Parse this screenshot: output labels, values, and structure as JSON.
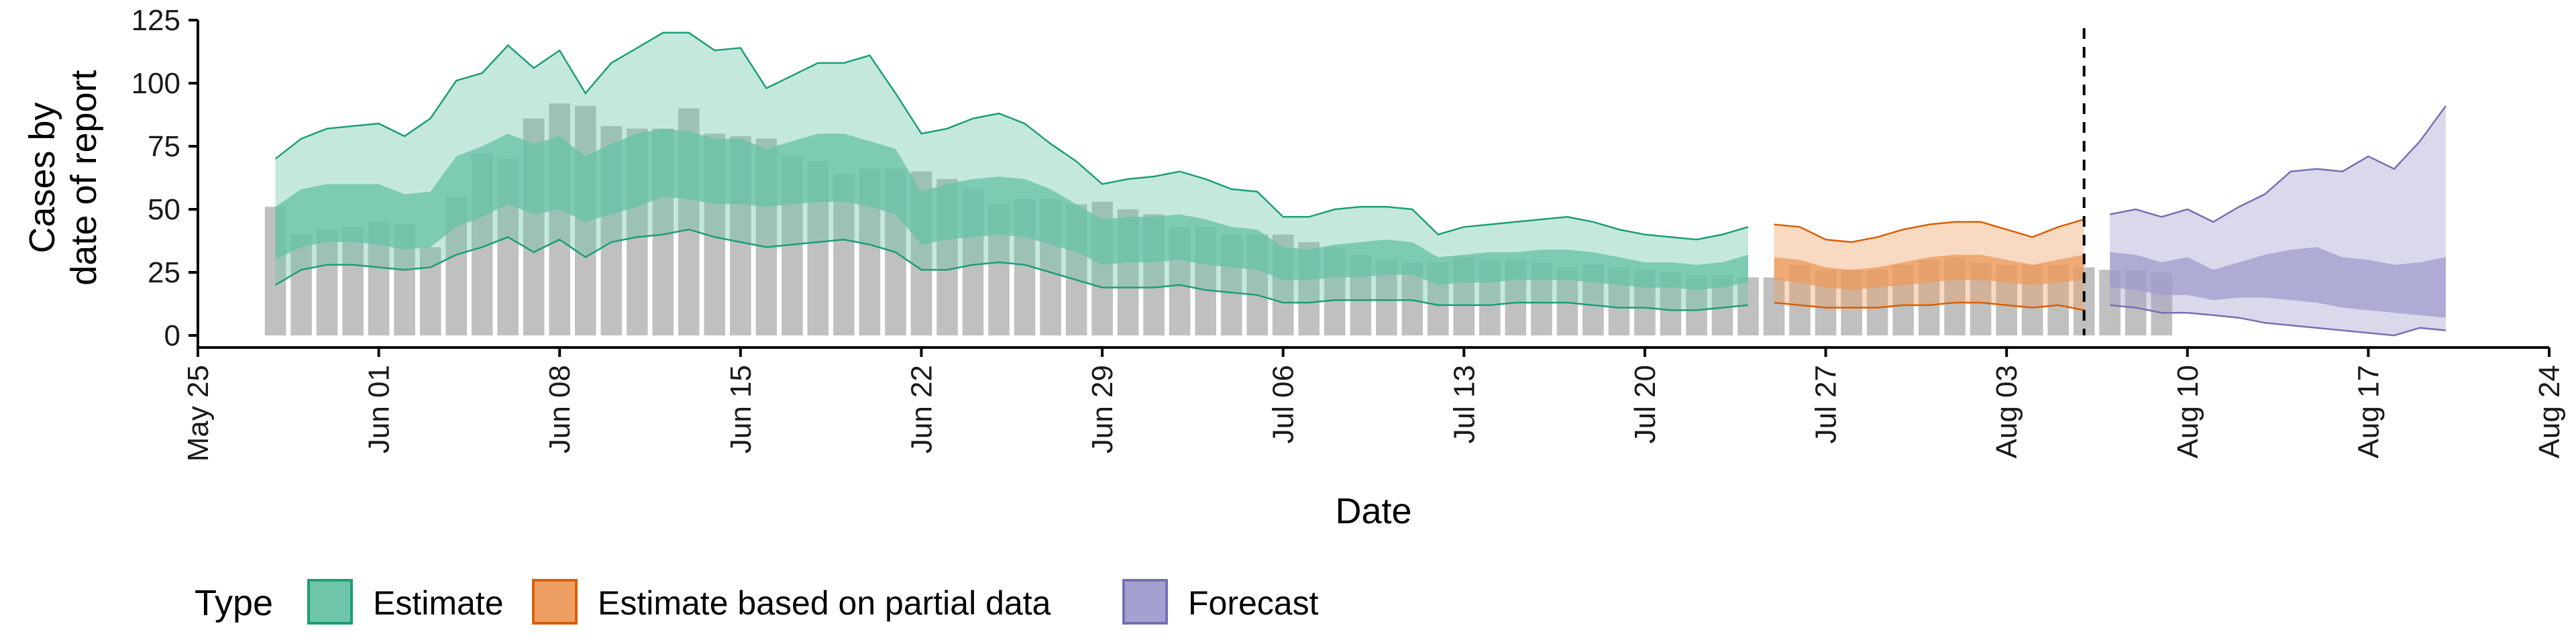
{
  "chart_data": {
    "type": "area",
    "xlabel": "Date",
    "ylabel_lines": [
      "Cases by",
      "date of report"
    ],
    "ylim": [
      0,
      125
    ],
    "xlim": [
      "2020-05-25",
      "2020-08-24"
    ],
    "y_ticks": [
      0,
      25,
      50,
      75,
      100,
      125
    ],
    "x_ticks": [
      {
        "date": "2020-05-25",
        "label": "May 25"
      },
      {
        "date": "2020-06-01",
        "label": "Jun 01"
      },
      {
        "date": "2020-06-08",
        "label": "Jun 08"
      },
      {
        "date": "2020-06-15",
        "label": "Jun 15"
      },
      {
        "date": "2020-06-22",
        "label": "Jun 22"
      },
      {
        "date": "2020-06-29",
        "label": "Jun 29"
      },
      {
        "date": "2020-07-06",
        "label": "Jul 06"
      },
      {
        "date": "2020-07-13",
        "label": "Jul 13"
      },
      {
        "date": "2020-07-20",
        "label": "Jul 20"
      },
      {
        "date": "2020-07-27",
        "label": "Jul 27"
      },
      {
        "date": "2020-08-03",
        "label": "Aug 03"
      },
      {
        "date": "2020-08-10",
        "label": "Aug 10"
      },
      {
        "date": "2020-08-17",
        "label": "Aug 17"
      },
      {
        "date": "2020-08-24",
        "label": "Aug 24"
      }
    ],
    "grid": false,
    "vline_date": "2020-08-06",
    "legend": {
      "title": "Type",
      "position": "bottom",
      "entries": [
        {
          "label": "Estimate",
          "fill": "#66c2a5",
          "stroke": "#1b9e77"
        },
        {
          "label": "Estimate based on partial data",
          "fill": "#ec9a5c",
          "stroke": "#d95f02"
        },
        {
          "label": "Forecast",
          "fill": "#9f9bcc",
          "stroke": "#7570b3"
        }
      ]
    },
    "reported_cases": {
      "start_date": "2020-05-28",
      "color": "#bdbdbd",
      "values": [
        51,
        40,
        42,
        43,
        45,
        44,
        35,
        55,
        72,
        70,
        86,
        92,
        91,
        83,
        82,
        82,
        90,
        80,
        79,
        78,
        71,
        69,
        64,
        66,
        66,
        65,
        62,
        58,
        52,
        54,
        54,
        52,
        53,
        50,
        48,
        43,
        43,
        40,
        40,
        40,
        37,
        35,
        32,
        30,
        29,
        29,
        31,
        30,
        30,
        29,
        27,
        28,
        27,
        26,
        25,
        24,
        24,
        23,
        23,
        28,
        26,
        26,
        26,
        28,
        30,
        31,
        29,
        28,
        28,
        28,
        27,
        26,
        26,
        25
      ]
    },
    "series": [
      {
        "name": "Estimate",
        "start_date": "2020-05-28",
        "fill": "#66c2a5",
        "stroke": "#1b9e77",
        "outer_upper": [
          70,
          78,
          82,
          83,
          84,
          79,
          86,
          101,
          104,
          115,
          106,
          113,
          96,
          108,
          114,
          120,
          120,
          113,
          114,
          98,
          103,
          108,
          108,
          111,
          96,
          80,
          82,
          86,
          88,
          84,
          76,
          69,
          60,
          62,
          63,
          65,
          62,
          58,
          57,
          47,
          47,
          50,
          51,
          51,
          50,
          40,
          43,
          44,
          45,
          46,
          47,
          45,
          42,
          40,
          39,
          38,
          40,
          43
        ],
        "inner_upper": [
          51,
          58,
          60,
          60,
          60,
          56,
          57,
          71,
          75,
          80,
          76,
          79,
          71,
          76,
          80,
          82,
          81,
          78,
          78,
          74,
          77,
          80,
          80,
          77,
          74,
          57,
          60,
          62,
          63,
          62,
          58,
          52,
          46,
          47,
          47,
          48,
          46,
          43,
          42,
          35,
          34,
          36,
          37,
          38,
          37,
          31,
          32,
          33,
          33,
          34,
          34,
          33,
          31,
          29,
          29,
          28,
          29,
          32
        ],
        "inner_lower": [
          30,
          35,
          37,
          37,
          36,
          34,
          35,
          43,
          47,
          52,
          48,
          50,
          45,
          48,
          51,
          55,
          54,
          52,
          52,
          51,
          52,
          53,
          53,
          51,
          48,
          36,
          38,
          39,
          40,
          39,
          36,
          33,
          28,
          29,
          29,
          30,
          28,
          27,
          26,
          22,
          22,
          23,
          23,
          24,
          24,
          20,
          21,
          21,
          22,
          22,
          22,
          21,
          20,
          19,
          19,
          18,
          19,
          21
        ],
        "outer_lower": [
          20,
          26,
          28,
          28,
          27,
          26,
          27,
          32,
          35,
          39,
          33,
          38,
          31,
          37,
          39,
          40,
          42,
          39,
          37,
          35,
          36,
          37,
          38,
          36,
          33,
          26,
          26,
          28,
          29,
          28,
          25,
          22,
          19,
          19,
          19,
          20,
          18,
          17,
          16,
          13,
          13,
          14,
          14,
          14,
          14,
          12,
          12,
          12,
          13,
          13,
          13,
          12,
          11,
          11,
          10,
          10,
          11,
          12
        ]
      },
      {
        "name": "Estimate based on partial data",
        "start_date": "2020-07-25",
        "fill": "#ec9a5c",
        "stroke": "#d95f02",
        "outer_upper": [
          44,
          43,
          38,
          37,
          39,
          42,
          44,
          45,
          45,
          42,
          39,
          43,
          46
        ],
        "inner_upper": [
          31,
          30,
          27,
          26,
          27,
          29,
          31,
          32,
          32,
          30,
          28,
          30,
          32
        ],
        "inner_lower": [
          22,
          21,
          19,
          18,
          19,
          20,
          21,
          22,
          22,
          21,
          20,
          21,
          22
        ],
        "outer_lower": [
          13,
          12,
          11,
          11,
          11,
          12,
          12,
          13,
          13,
          12,
          11,
          12,
          10
        ]
      },
      {
        "name": "Forecast",
        "start_date": "2020-08-07",
        "fill": "#9f9bcc",
        "stroke": "#7570b3",
        "outer_upper": [
          48,
          50,
          47,
          50,
          45,
          51,
          56,
          65,
          66,
          65,
          71,
          66,
          77,
          91
        ],
        "inner_upper": [
          33,
          32,
          29,
          31,
          26,
          29,
          32,
          34,
          35,
          31,
          30,
          28,
          29,
          31
        ],
        "inner_lower": [
          19,
          18,
          16,
          16,
          14,
          15,
          15,
          14,
          13,
          11,
          10,
          9,
          8,
          7
        ],
        "outer_lower": [
          12,
          11,
          9,
          9,
          8,
          7,
          5,
          4,
          3,
          2,
          1,
          0,
          3,
          2
        ]
      }
    ]
  }
}
